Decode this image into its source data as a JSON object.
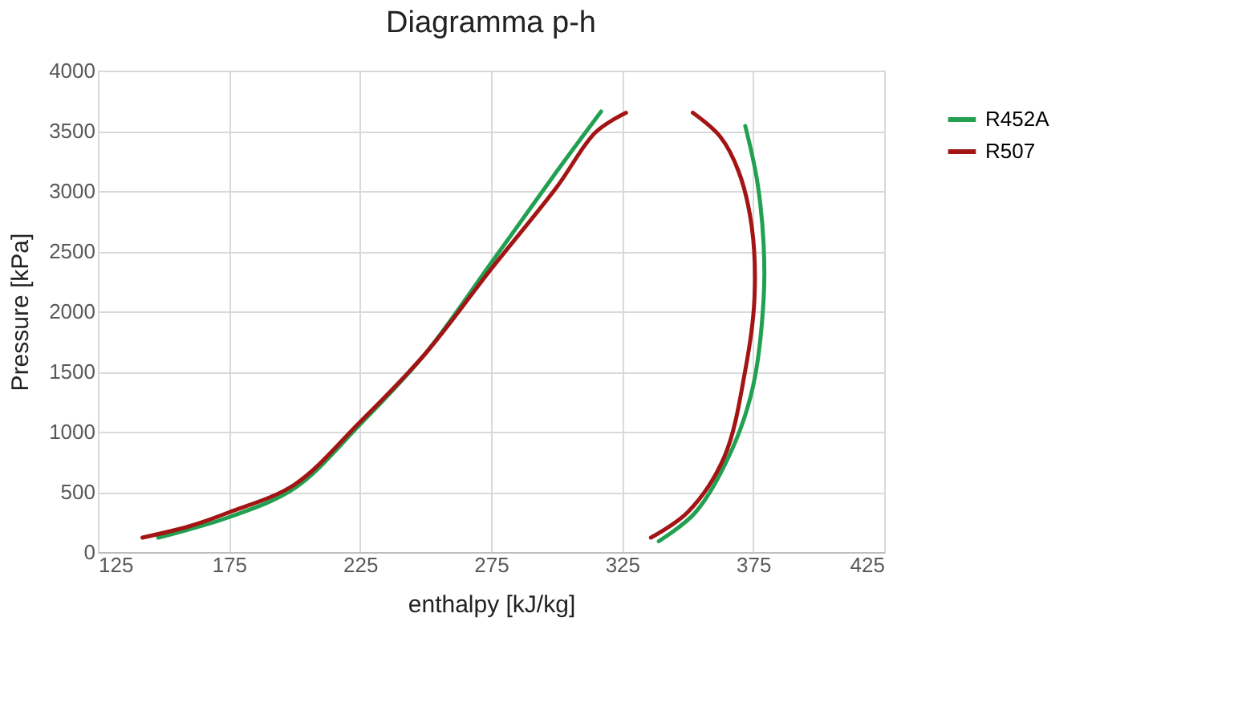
{
  "chart_data": {
    "type": "line",
    "title": "Diagramma p-h",
    "xlabel": "enthalpy [kJ/kg]",
    "ylabel": "Pressure [kPa]",
    "xlim": [
      125,
      425
    ],
    "xticks": [
      125,
      175,
      225,
      275,
      325,
      375,
      425
    ],
    "ylim": [
      0,
      4000
    ],
    "yticks": [
      0,
      500,
      1000,
      1500,
      2000,
      2500,
      3000,
      3500,
      4000
    ],
    "grid": true,
    "legend": "right",
    "marker": "none",
    "line_style": "solid",
    "series": [
      {
        "name": "R452A",
        "color": "#22a052",
        "x": [
          148,
          160,
          175,
          200,
          225,
          250,
          275,
          300,
          317,
          null,
          339,
          353,
          367,
          375,
          379,
          379,
          376.5,
          372
        ],
        "values": [
          120,
          190,
          290,
          530,
          1060,
          1650,
          2400,
          3160,
          3660,
          null,
          90,
          330,
          855,
          1380,
          2100,
          2560,
          3090,
          3540
        ]
      },
      {
        "name": "R507",
        "color": "#a31515",
        "x": [
          142,
          160,
          175,
          200,
          225,
          250,
          275,
          300,
          315,
          326.5,
          null,
          336,
          350,
          364,
          372,
          375.5,
          374.5,
          369.5,
          362.5,
          352
        ],
        "values": [
          120,
          215,
          330,
          560,
          1080,
          1650,
          2350,
          3030,
          3490,
          3650,
          null,
          120,
          330,
          790,
          1510,
          2100,
          2700,
          3160,
          3450,
          3650
        ]
      }
    ]
  }
}
